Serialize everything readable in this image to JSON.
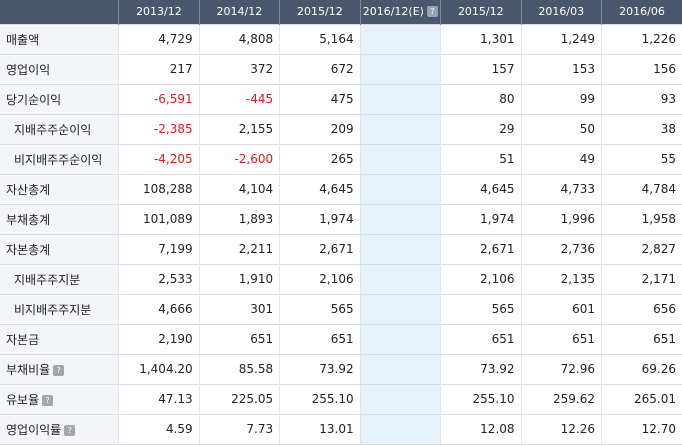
{
  "columns": [
    {
      "label": "2013/12",
      "help": false
    },
    {
      "label": "2014/12",
      "help": false
    },
    {
      "label": "2015/12",
      "help": false
    },
    {
      "label": "2016/12(E)",
      "help": true
    },
    {
      "label": "2015/12",
      "help": false
    },
    {
      "label": "2016/03",
      "help": false
    },
    {
      "label": "2016/06",
      "help": false
    }
  ],
  "help_glyph": "?",
  "rows": [
    {
      "label": "매출액",
      "indent": false,
      "help": false,
      "values": [
        "4,729",
        "4,808",
        "5,164",
        "",
        "1,301",
        "1,249",
        "1,226"
      ]
    },
    {
      "label": "영업이익",
      "indent": false,
      "help": false,
      "values": [
        "217",
        "372",
        "672",
        "",
        "157",
        "153",
        "156"
      ]
    },
    {
      "label": "당기순이익",
      "indent": false,
      "help": false,
      "values": [
        "-6,591",
        "-445",
        "475",
        "",
        "80",
        "99",
        "93"
      ]
    },
    {
      "label": "지배주주순이익",
      "indent": true,
      "help": false,
      "values": [
        "-2,385",
        "2,155",
        "209",
        "",
        "29",
        "50",
        "38"
      ]
    },
    {
      "label": "비지배주주순이익",
      "indent": true,
      "help": false,
      "values": [
        "-4,205",
        "-2,600",
        "265",
        "",
        "51",
        "49",
        "55"
      ]
    },
    {
      "label": "자산총계",
      "indent": false,
      "help": false,
      "values": [
        "108,288",
        "4,104",
        "4,645",
        "",
        "4,645",
        "4,733",
        "4,784"
      ]
    },
    {
      "label": "부채총계",
      "indent": false,
      "help": false,
      "values": [
        "101,089",
        "1,893",
        "1,974",
        "",
        "1,974",
        "1,996",
        "1,958"
      ]
    },
    {
      "label": "자본총계",
      "indent": false,
      "help": false,
      "values": [
        "7,199",
        "2,211",
        "2,671",
        "",
        "2,671",
        "2,736",
        "2,827"
      ]
    },
    {
      "label": "지배주주지분",
      "indent": true,
      "help": false,
      "values": [
        "2,533",
        "1,910",
        "2,106",
        "",
        "2,106",
        "2,135",
        "2,171"
      ]
    },
    {
      "label": "비지배주주지분",
      "indent": true,
      "help": false,
      "values": [
        "4,666",
        "301",
        "565",
        "",
        "565",
        "601",
        "656"
      ]
    },
    {
      "label": "자본금",
      "indent": false,
      "help": false,
      "values": [
        "2,190",
        "651",
        "651",
        "",
        "651",
        "651",
        "651"
      ]
    },
    {
      "label": "부채비율",
      "indent": false,
      "help": true,
      "values": [
        "1,404.20",
        "85.58",
        "73.92",
        "",
        "73.92",
        "72.96",
        "69.26"
      ]
    },
    {
      "label": "유보율",
      "indent": false,
      "help": true,
      "values": [
        "47.13",
        "225.05",
        "255.10",
        "",
        "255.10",
        "259.62",
        "265.01"
      ]
    },
    {
      "label": "영업이익률",
      "indent": false,
      "help": true,
      "values": [
        "4.59",
        "7.73",
        "13.01",
        "",
        "12.08",
        "12.26",
        "12.70"
      ]
    }
  ],
  "colors": {
    "header_bg": "#49586c",
    "label_bg": "#f3f5f8",
    "estimate_bg": "#e6f2fb",
    "negative": "#e21a1a"
  }
}
